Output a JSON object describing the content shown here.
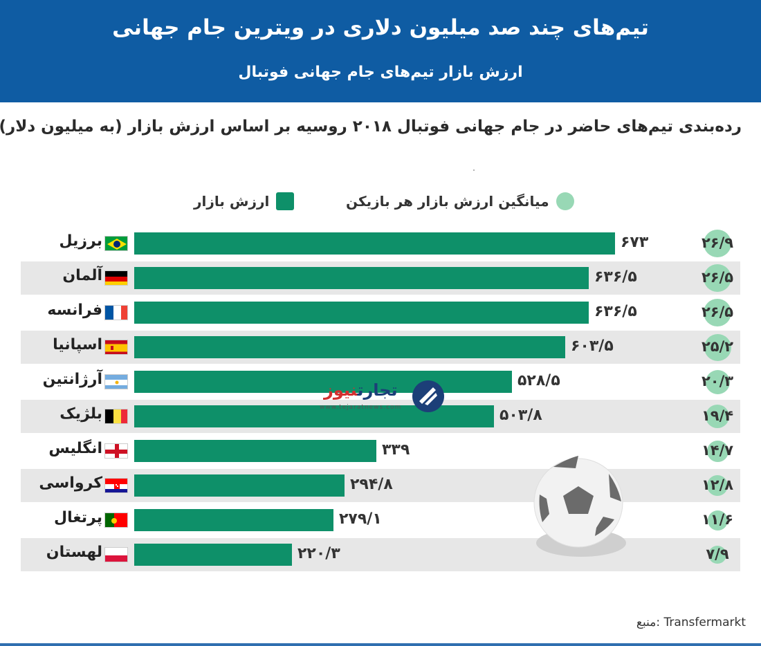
{
  "header": {
    "title": "تیم‌های چند صد میلیون دلاری در ویترین جام جهانی",
    "subtitle": "ارزش بازار تیم‌های جام جهانی فوتبال"
  },
  "caption": "رده‌بندی تیم‌های حاضر در جام جهانی فوتبال ۲۰۱۸ روسیه بر اساس ارزش بازار (به میلیون دلار)",
  "legend": {
    "market_value": "ارزش بازار",
    "avg_player_value": "میانگین ارزش بازار هر بازیکن"
  },
  "colors": {
    "header_bg": "#0f5ca3",
    "bar": "#0e9069",
    "avg_circle": "#98d8b5",
    "row_shade": "#e7e7e7"
  },
  "logo": {
    "name_part1": "تجارت",
    "name_part2": "نیوز",
    "url": "www.tejaratnews.com"
  },
  "source": "منبع: Transfermarkt",
  "chart_data": {
    "type": "bar",
    "orientation": "horizontal",
    "categories": [
      "برزیل",
      "آلمان",
      "فرانسه",
      "اسپانیا",
      "آرژانتین",
      "بلژیک",
      "انگلیس",
      "کرواسی",
      "پرتغال",
      "لهستان"
    ],
    "series": [
      {
        "name": "ارزش بازار",
        "values": [
          673,
          636.5,
          636.5,
          603.5,
          528.5,
          503.8,
          339,
          294.8,
          279.1,
          220.3
        ],
        "labels": [
          "۶۷۳",
          "۶۳۶/۵",
          "۶۳۶/۵",
          "۶۰۳/۵",
          "۵۲۸/۵",
          "۵۰۳/۸",
          "۳۳۹",
          "۲۹۴/۸",
          "۲۷۹/۱",
          "۲۲۰/۳"
        ]
      },
      {
        "name": "میانگین ارزش بازار هر بازیکن",
        "values": [
          26.9,
          26.5,
          26.5,
          25.2,
          20.3,
          19.4,
          14.7,
          12.8,
          11.6,
          7.9
        ],
        "labels": [
          "۲۶/۹",
          "۲۶/۵",
          "۲۶/۵",
          "۲۵/۲",
          "۲۰/۳",
          "۱۹/۴",
          "۱۴/۷",
          "۱۲/۸",
          "۱۱/۶",
          "۷/۹"
        ]
      }
    ],
    "flags": [
      "brazil",
      "germany",
      "france",
      "spain",
      "argentina",
      "belgium",
      "england",
      "croatia",
      "portugal",
      "poland"
    ],
    "xlim": [
      0,
      673
    ],
    "unit": "میلیون دلار",
    "legend_position": "top",
    "grid": false
  }
}
